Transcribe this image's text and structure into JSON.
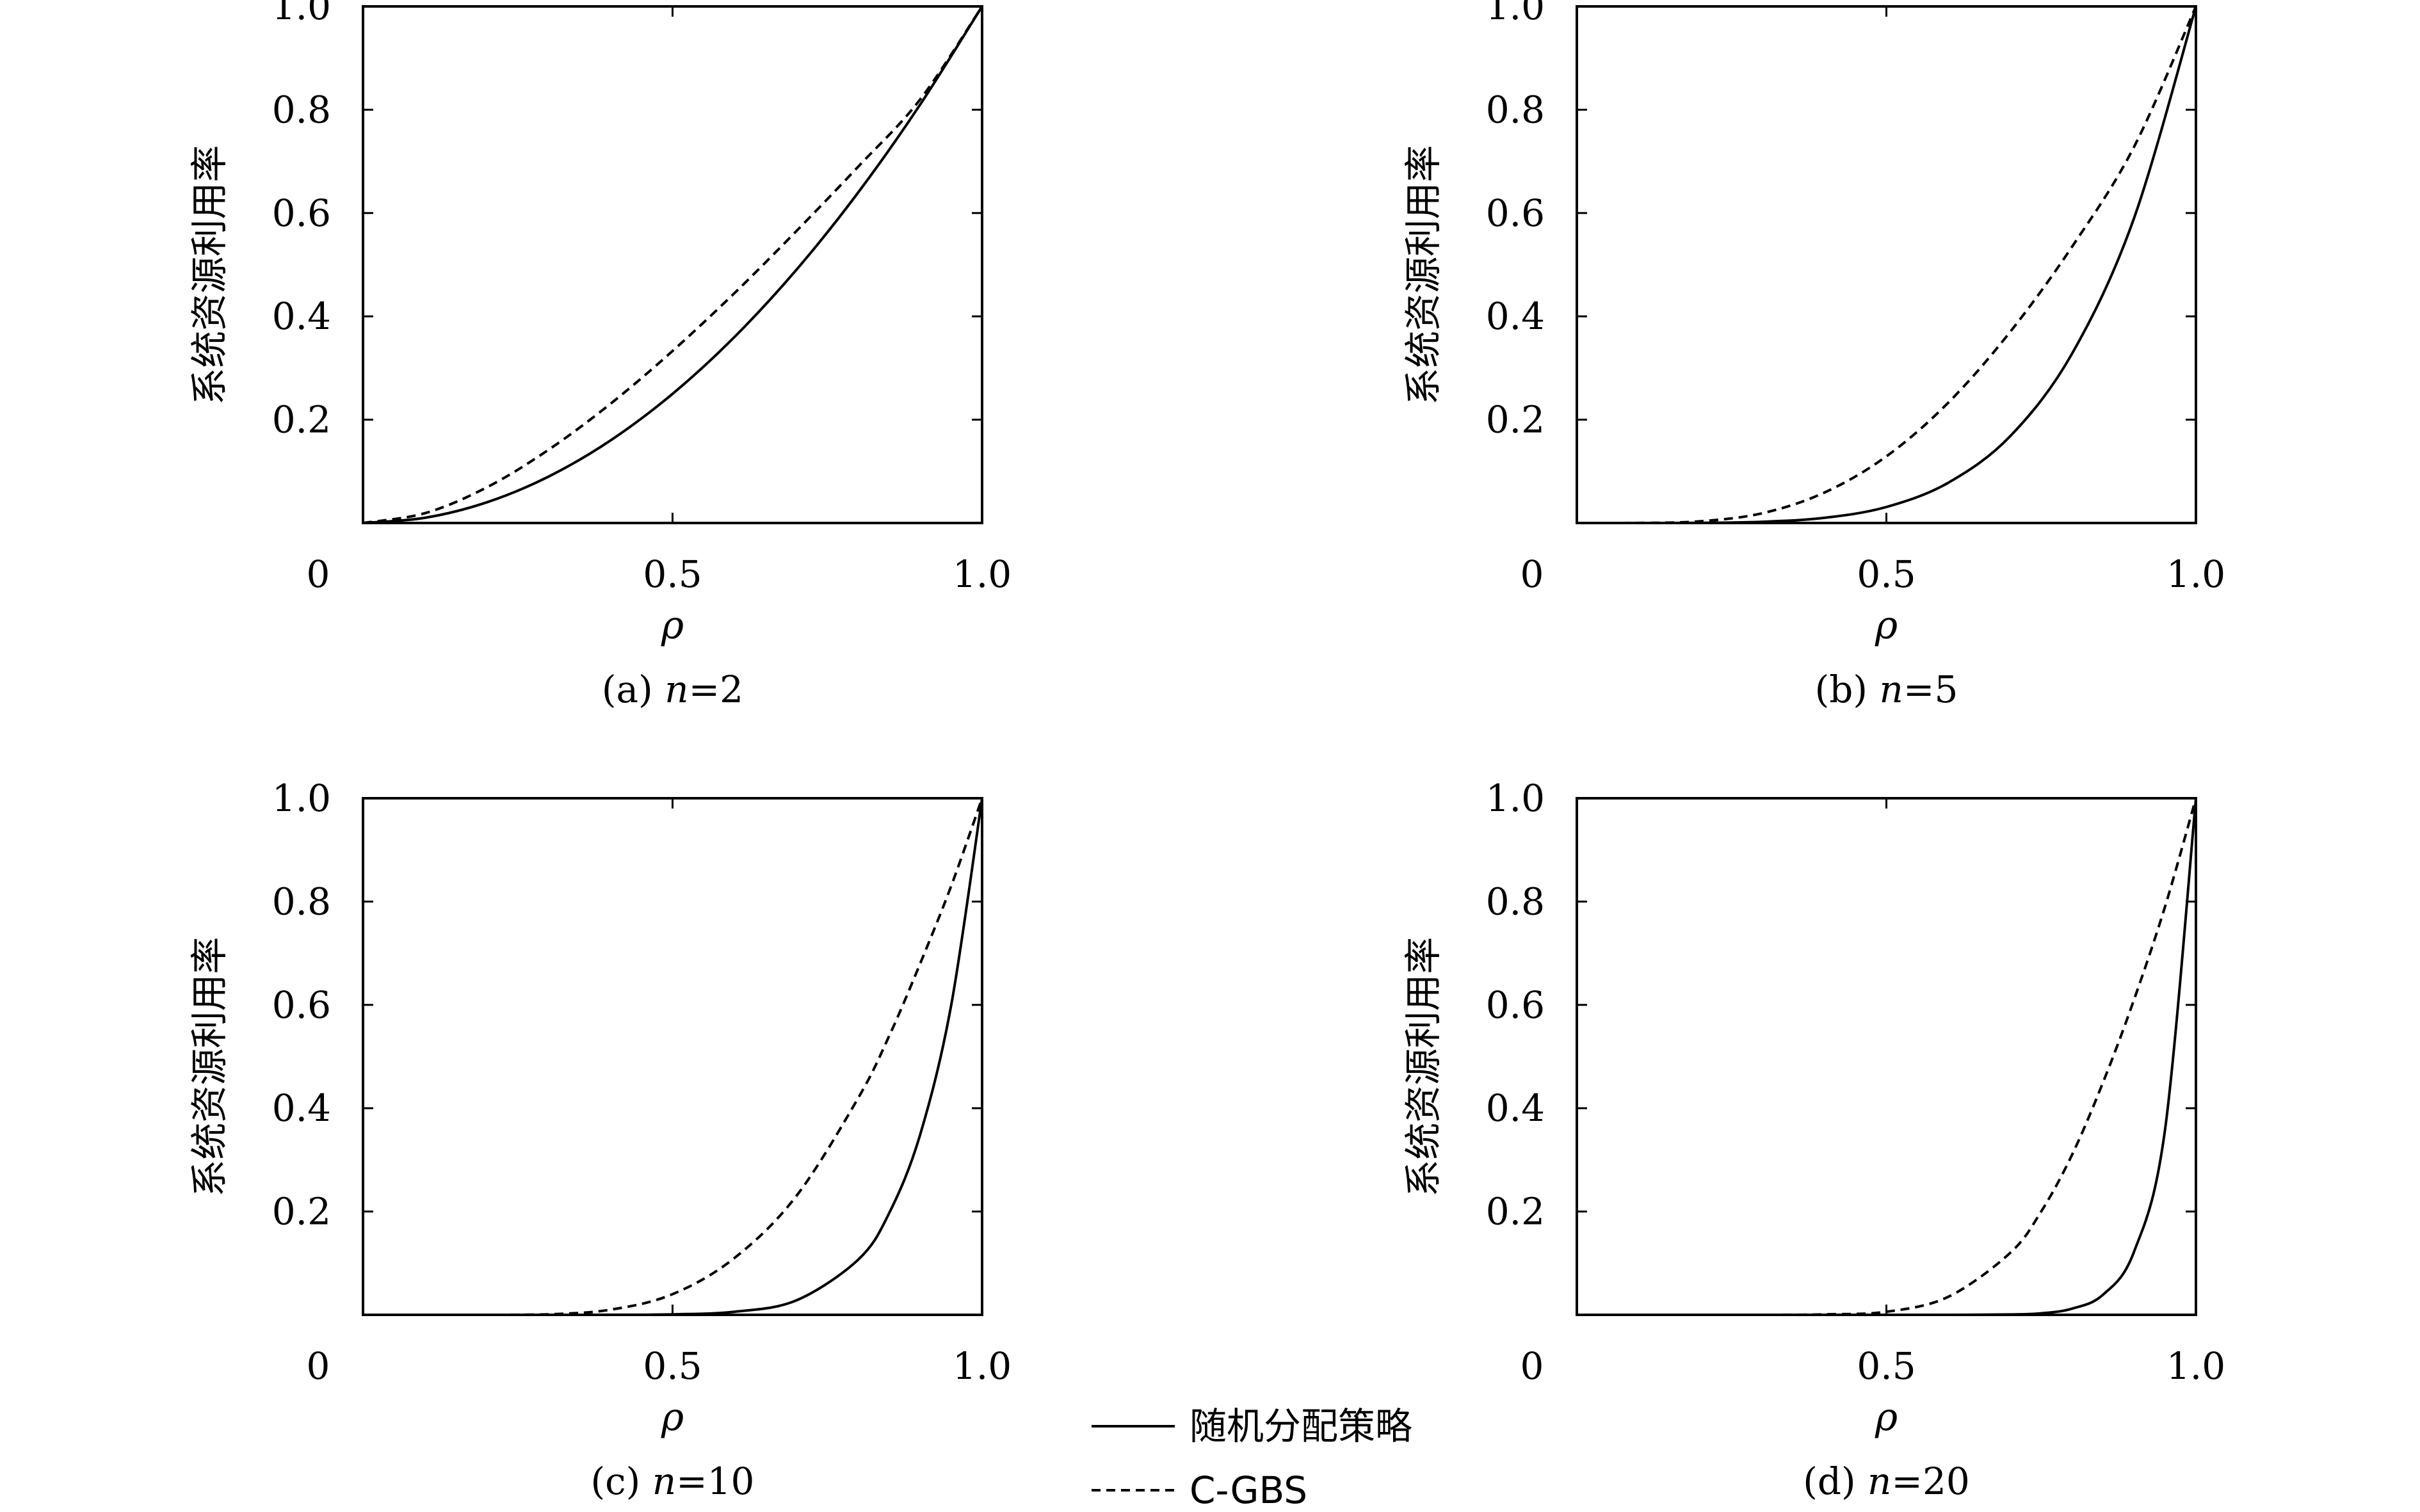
{
  "chart_data": [
    {
      "type": "line",
      "caption_prefix": "(a) ",
      "caption_var": "n",
      "caption_value": "=2",
      "xlabel": "ρ",
      "ylabel": "系统资源利用率",
      "xlim": [
        0,
        1.0
      ],
      "ylim": [
        0,
        1.0
      ],
      "x_origin_label": "0",
      "xticks": [
        {
          "value": 0.5,
          "label": "0.5"
        },
        {
          "value": 1.0,
          "label": "1.0"
        }
      ],
      "yticks": [
        {
          "value": 0.2,
          "label": "0.2"
        },
        {
          "value": 0.4,
          "label": "0.4"
        },
        {
          "value": 0.6,
          "label": "0.6"
        },
        {
          "value": 0.8,
          "label": "0.8"
        },
        {
          "value": 1.0,
          "label": "1.0"
        }
      ],
      "x": [
        0,
        0.1,
        0.2,
        0.3,
        0.4,
        0.5,
        0.6,
        0.7,
        0.8,
        0.9,
        1.0
      ],
      "series": [
        {
          "name": "随机分配策略",
          "style": "solid",
          "values": [
            0,
            0.01,
            0.04,
            0.09,
            0.16,
            0.25,
            0.36,
            0.49,
            0.64,
            0.81,
            1.0
          ]
        },
        {
          "name": "C-GBS",
          "style": "dashed",
          "values": [
            0,
            0.019,
            0.069,
            0.142,
            0.231,
            0.333,
            0.445,
            0.565,
            0.69,
            0.82,
            1.0
          ]
        }
      ]
    },
    {
      "type": "line",
      "caption_prefix": "(b) ",
      "caption_var": "n",
      "caption_value": "=5",
      "xlabel": "ρ",
      "ylabel": "系统资源利用率",
      "xlim": [
        0,
        1.0
      ],
      "ylim": [
        0,
        1.0
      ],
      "x_origin_label": "0",
      "xticks": [
        {
          "value": 0.5,
          "label": "0.5"
        },
        {
          "value": 1.0,
          "label": "1.0"
        }
      ],
      "yticks": [
        {
          "value": 0.2,
          "label": "0.2"
        },
        {
          "value": 0.4,
          "label": "0.4"
        },
        {
          "value": 0.6,
          "label": "0.6"
        },
        {
          "value": 0.8,
          "label": "0.8"
        },
        {
          "value": 1.0,
          "label": "1.0"
        }
      ],
      "x": [
        0,
        0.1,
        0.2,
        0.3,
        0.4,
        0.5,
        0.6,
        0.7,
        0.8,
        0.9,
        1.0
      ],
      "series": [
        {
          "name": "随机分配策略",
          "style": "solid",
          "values": [
            0,
            0,
            0.0003,
            0.0024,
            0.01,
            0.031,
            0.078,
            0.168,
            0.328,
            0.59,
            1.0
          ]
        },
        {
          "name": "C-GBS",
          "style": "dashed",
          "values": [
            0,
            0.0001,
            0.0034,
            0.019,
            0.059,
            0.129,
            0.233,
            0.37,
            0.535,
            0.728,
            1.0
          ]
        }
      ]
    },
    {
      "type": "line",
      "caption_prefix": "(c) ",
      "caption_var": "n",
      "caption_value": "=10",
      "xlabel": "ρ",
      "ylabel": "系统资源利用率",
      "xlim": [
        0,
        1.0
      ],
      "ylim": [
        0,
        1.0
      ],
      "x_origin_label": "0",
      "xticks": [
        {
          "value": 0.5,
          "label": "0.5"
        },
        {
          "value": 1.0,
          "label": "1.0"
        }
      ],
      "yticks": [
        {
          "value": 0.2,
          "label": "0.2"
        },
        {
          "value": 0.4,
          "label": "0.4"
        },
        {
          "value": 0.6,
          "label": "0.6"
        },
        {
          "value": 0.8,
          "label": "0.8"
        },
        {
          "value": 1.0,
          "label": "1.0"
        }
      ],
      "x": [
        0,
        0.1,
        0.2,
        0.3,
        0.4,
        0.5,
        0.6,
        0.7,
        0.8,
        0.85,
        0.9,
        0.95,
        1.0
      ],
      "series": [
        {
          "name": "随机分配策略",
          "style": "solid",
          "values": [
            0,
            0,
            0,
            0,
            0.0001,
            0.001,
            0.006,
            0.028,
            0.107,
            0.197,
            0.349,
            0.599,
            1.0
          ]
        },
        {
          "name": "C-GBS",
          "style": "dashed",
          "values": [
            0,
            0,
            0,
            0.001,
            0.01,
            0.04,
            0.11,
            0.23,
            0.42,
            0.54,
            0.68,
            0.83,
            1.0
          ]
        }
      ]
    },
    {
      "type": "line",
      "caption_prefix": "(d) ",
      "caption_var": "n",
      "caption_value": "=20",
      "xlabel": "ρ",
      "ylabel": "系统资源利用率",
      "xlim": [
        0,
        1.0
      ],
      "ylim": [
        0,
        1.0
      ],
      "x_origin_label": "0",
      "xticks": [
        {
          "value": 0.5,
          "label": "0.5"
        },
        {
          "value": 1.0,
          "label": "1.0"
        }
      ],
      "yticks": [
        {
          "value": 0.2,
          "label": "0.2"
        },
        {
          "value": 0.4,
          "label": "0.4"
        },
        {
          "value": 0.6,
          "label": "0.6"
        },
        {
          "value": 0.8,
          "label": "0.8"
        },
        {
          "value": 1.0,
          "label": "1.0"
        }
      ],
      "x": [
        0,
        0.1,
        0.2,
        0.3,
        0.4,
        0.5,
        0.6,
        0.7,
        0.75,
        0.8,
        0.85,
        0.9,
        0.95,
        1.0
      ],
      "series": [
        {
          "name": "随机分配策略",
          "style": "solid",
          "values": [
            0,
            0,
            0,
            0,
            0,
            0,
            0,
            0.0008,
            0.003,
            0.012,
            0.039,
            0.122,
            0.358,
            1.0
          ]
        },
        {
          "name": "C-GBS",
          "style": "dashed",
          "values": [
            0,
            0,
            0,
            0,
            0.001,
            0.006,
            0.035,
            0.12,
            0.2,
            0.31,
            0.45,
            0.61,
            0.79,
            1.0
          ]
        }
      ]
    }
  ],
  "legend": {
    "items": [
      {
        "label": "随机分配策略",
        "style": "solid"
      },
      {
        "label": "C-GBS",
        "style": "dashed"
      }
    ]
  }
}
